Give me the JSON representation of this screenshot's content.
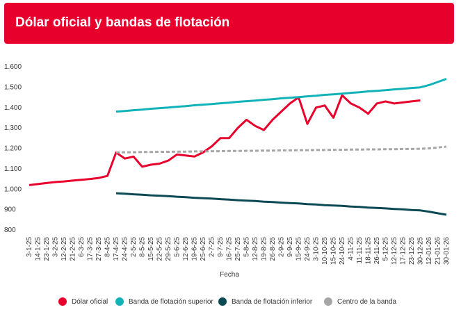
{
  "chart_data": {
    "type": "line",
    "title": "Dólar oficial y bandas de flotación",
    "x_label": "Fecha",
    "categories": [
      "3-1-25",
      "14-1-25",
      "23-1-25",
      "3-2-25",
      "12-2-25",
      "21-2-25",
      "6-3-25",
      "17-3-25",
      "27-3-25",
      "8-4-25",
      "17-4-25",
      "24-4-25",
      "2-5-25",
      "8-5-25",
      "15-5-25",
      "22-5-25",
      "29-5-25",
      "5-6-25",
      "12-6-25",
      "19-6-25",
      "25-6-25",
      "2-7-25",
      "9-7-25",
      "16-7-25",
      "25-7-25",
      "5-8-25",
      "12-8-25",
      "19-8-25",
      "26-8-25",
      "2-9-25",
      "9-9-25",
      "15-9-25",
      "24-9-25",
      "3-10-25",
      "10-10-25",
      "15-10-25",
      "24-10-25",
      "4-11-25",
      "11-11-25",
      "18-11-25",
      "26-11-25",
      "5-12-25",
      "12-12-25",
      "17-12-25",
      "23-12-25",
      "30-12-25",
      "12-01-26",
      "21-01-26",
      "30-01-26"
    ],
    "series": [
      {
        "name": "Dólar oficial",
        "color": "#e8002d",
        "line_style": "solid",
        "values": [
          1020,
          1025,
          1030,
          1035,
          1038,
          1042,
          1046,
          1050,
          1055,
          1065,
          1180,
          1150,
          1160,
          1110,
          1120,
          1125,
          1140,
          1170,
          1165,
          1160,
          1180,
          1210,
          1250,
          1250,
          1300,
          1340,
          1310,
          1290,
          1340,
          1380,
          1420,
          1450,
          1320,
          1400,
          1410,
          1350,
          1460,
          1420,
          1400,
          1370,
          1420,
          1430,
          1420,
          1425,
          1430,
          1435,
          null,
          null,
          null
        ]
      },
      {
        "name": "Banda de flotación superior",
        "color": "#12b3b8",
        "line_style": "solid",
        "values": [
          null,
          null,
          null,
          null,
          null,
          null,
          null,
          null,
          null,
          null,
          1380,
          1383,
          1387,
          1390,
          1394,
          1397,
          1400,
          1404,
          1407,
          1411,
          1414,
          1417,
          1421,
          1424,
          1428,
          1431,
          1434,
          1438,
          1441,
          1445,
          1448,
          1451,
          1455,
          1458,
          1462,
          1465,
          1468,
          1472,
          1475,
          1479,
          1482,
          1485,
          1489,
          1492,
          1496,
          1499,
          1510,
          1525,
          1540
        ]
      },
      {
        "name": "Banda de flotación inferior",
        "color": "#0b4a55",
        "line_style": "solid",
        "values": [
          null,
          null,
          null,
          null,
          null,
          null,
          null,
          null,
          null,
          null,
          980,
          978,
          975,
          973,
          970,
          968,
          966,
          963,
          961,
          958,
          956,
          954,
          951,
          949,
          946,
          944,
          942,
          939,
          937,
          934,
          932,
          930,
          927,
          925,
          922,
          920,
          918,
          915,
          913,
          910,
          908,
          906,
          903,
          901,
          898,
          896,
          890,
          882,
          875
        ]
      },
      {
        "name": "Centro de la banda",
        "color": "#a6a6a6",
        "line_style": "dashed",
        "values": [
          null,
          null,
          null,
          null,
          null,
          null,
          null,
          null,
          null,
          null,
          1180,
          1181,
          1181,
          1182,
          1182,
          1183,
          1183,
          1184,
          1184,
          1185,
          1185,
          1186,
          1186,
          1187,
          1187,
          1188,
          1188,
          1189,
          1189,
          1190,
          1190,
          1191,
          1191,
          1192,
          1192,
          1193,
          1193,
          1194,
          1194,
          1195,
          1195,
          1196,
          1196,
          1197,
          1197,
          1198,
          1200,
          1204,
          1208
        ]
      }
    ],
    "ylim": [
      800,
      1600
    ],
    "yticks": [
      800,
      900,
      {
        "value": 1000,
        "label": "1.000"
      },
      {
        "value": 1100,
        "label": "1.100"
      },
      {
        "value": 1200,
        "label": "1.200"
      },
      {
        "value": 1300,
        "label": "1.300"
      },
      {
        "value": 1400,
        "label": "1.400"
      },
      {
        "value": 1500,
        "label": "1.500"
      },
      {
        "value": 1600,
        "label": "1.600"
      }
    ],
    "grid": false,
    "legend": "bottom"
  }
}
